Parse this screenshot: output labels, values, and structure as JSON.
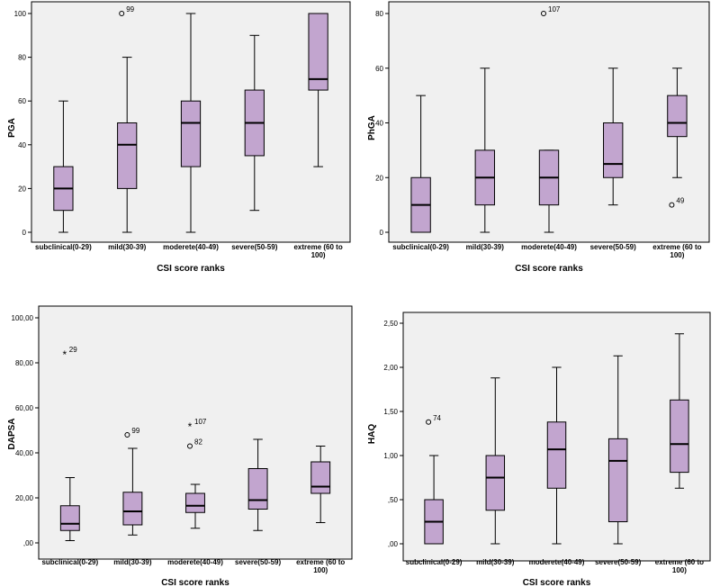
{
  "colors": {
    "box_fill": "#c2a5cf",
    "plot_bg": "#f0f0f0",
    "frame": "#000000"
  },
  "chart_data": [
    {
      "type": "boxplot",
      "ylabel": "PGA",
      "xlabel": "CSI score ranks",
      "ylim": [
        0,
        100
      ],
      "ticks": [
        0,
        20,
        40,
        60,
        80,
        100
      ],
      "tick_labels": [
        "0",
        "20",
        "40",
        "60",
        "80",
        "100"
      ],
      "categories": [
        {
          "name": "subclinical(0-29)",
          "label_lines": [
            "subclinical(0-29)"
          ],
          "min": 0,
          "q1": 10,
          "median": 20,
          "q3": 30,
          "max": 60,
          "outliers": []
        },
        {
          "name": "mild(30-39)",
          "label_lines": [
            "mild(30-39)"
          ],
          "min": 0,
          "q1": 20,
          "median": 40,
          "q3": 50,
          "max": 80,
          "outliers": [
            {
              "value": 100,
              "label": "99",
              "marker": "circle"
            }
          ]
        },
        {
          "name": "moderete(40-49)",
          "label_lines": [
            "moderete(40-49)"
          ],
          "min": 0,
          "q1": 30,
          "median": 50,
          "q3": 60,
          "max": 100,
          "outliers": []
        },
        {
          "name": "severe(50-59)",
          "label_lines": [
            "severe(50-59)"
          ],
          "min": 10,
          "q1": 35,
          "median": 50,
          "q3": 65,
          "max": 90,
          "outliers": []
        },
        {
          "name": "extreme (60 to 100)",
          "label_lines": [
            "extreme (60 to",
            "100)"
          ],
          "min": 30,
          "q1": 65,
          "median": 70,
          "q3": 100,
          "max": 100,
          "outliers": []
        }
      ]
    },
    {
      "type": "boxplot",
      "ylabel": "PhGA",
      "xlabel": "CSI score ranks",
      "ylim": [
        0,
        80
      ],
      "ticks": [
        0,
        20,
        40,
        60,
        80
      ],
      "tick_labels": [
        "0",
        "20",
        "40",
        "60",
        "80"
      ],
      "categories": [
        {
          "name": "subclinical(0-29)",
          "label_lines": [
            "subclinical(0-29)"
          ],
          "min": 0,
          "q1": 0,
          "median": 10,
          "q3": 20,
          "max": 50,
          "outliers": []
        },
        {
          "name": "mild(30-39)",
          "label_lines": [
            "mild(30-39)"
          ],
          "min": 0,
          "q1": 10,
          "median": 20,
          "q3": 30,
          "max": 60,
          "outliers": []
        },
        {
          "name": "moderete(40-49)",
          "label_lines": [
            "moderete(40-49)"
          ],
          "min": 0,
          "q1": 10,
          "median": 20,
          "q3": 30,
          "max": 30,
          "outliers": [
            {
              "value": 80,
              "label": "107",
              "marker": "circle"
            }
          ]
        },
        {
          "name": "severe(50-59)",
          "label_lines": [
            "severe(50-59)"
          ],
          "min": 10,
          "q1": 20,
          "median": 25,
          "q3": 40,
          "max": 60,
          "outliers": []
        },
        {
          "name": "extreme (60 to 100)",
          "label_lines": [
            "extreme (60 to",
            "100)"
          ],
          "min": 20,
          "q1": 35,
          "median": 40,
          "q3": 50,
          "max": 60,
          "outliers": [
            {
              "value": 10,
              "label": "49",
              "marker": "circle"
            }
          ]
        }
      ]
    },
    {
      "type": "boxplot",
      "ylabel": "DAPSA",
      "xlabel": "CSI score ranks",
      "ylim": [
        0,
        100
      ],
      "ticks": [
        0,
        20,
        40,
        60,
        80,
        100
      ],
      "tick_labels": [
        ",00",
        "20,00",
        "40,00",
        "60,00",
        "80,00",
        "100,00"
      ],
      "categories": [
        {
          "name": "subclinical(0-29)",
          "label_lines": [
            "subclinical(0-29)"
          ],
          "min": 1,
          "q1": 5.5,
          "median": 8.5,
          "q3": 16.5,
          "max": 29,
          "outliers": [
            {
              "value": 84,
              "label": "29",
              "marker": "star"
            }
          ]
        },
        {
          "name": "mild(30-39)",
          "label_lines": [
            "mild(30-39)"
          ],
          "min": 3.5,
          "q1": 8,
          "median": 14,
          "q3": 22.5,
          "max": 42,
          "outliers": [
            {
              "value": 48,
              "label": "99",
              "marker": "circle"
            }
          ]
        },
        {
          "name": "moderete(40-49)",
          "label_lines": [
            "moderete(40-49)"
          ],
          "min": 6.5,
          "q1": 13.5,
          "median": 16.5,
          "q3": 22,
          "max": 26,
          "outliers": [
            {
              "value": 52,
              "label": "107",
              "marker": "star"
            },
            {
              "value": 43,
              "label": "82",
              "marker": "circle"
            }
          ]
        },
        {
          "name": "severe(50-59)",
          "label_lines": [
            "severe(50-59)"
          ],
          "min": 5.5,
          "q1": 15,
          "median": 19,
          "q3": 33,
          "max": 46,
          "outliers": []
        },
        {
          "name": "extreme (60 to 100)",
          "label_lines": [
            "extreme (60 to",
            "100)"
          ],
          "min": 9,
          "q1": 22,
          "median": 25,
          "q3": 36,
          "max": 43,
          "outliers": []
        }
      ]
    },
    {
      "type": "boxplot",
      "ylabel": "HAQ",
      "xlabel": "CSI score ranks",
      "ylim": [
        0,
        2.5
      ],
      "ticks": [
        0,
        0.5,
        1,
        1.5,
        2,
        2.5
      ],
      "tick_labels": [
        ",00",
        ",50",
        "1,00",
        "1,50",
        "2,00",
        "2,50"
      ],
      "categories": [
        {
          "name": "subclinical(0-29)",
          "label_lines": [
            "subclinical(0-29)"
          ],
          "min": 0,
          "q1": 0,
          "median": 0.25,
          "q3": 0.5,
          "max": 1.0,
          "outliers": [
            {
              "value": 1.38,
              "label": "74",
              "marker": "circle"
            }
          ]
        },
        {
          "name": "mild(30-39)",
          "label_lines": [
            "mild(30-39)"
          ],
          "min": 0,
          "q1": 0.38,
          "median": 0.75,
          "q3": 1.0,
          "max": 1.88,
          "outliers": []
        },
        {
          "name": "moderete(40-49)",
          "label_lines": [
            "moderete(40-49)"
          ],
          "min": 0,
          "q1": 0.63,
          "median": 1.07,
          "q3": 1.38,
          "max": 2.0,
          "outliers": []
        },
        {
          "name": "severe(50-59)",
          "label_lines": [
            "severe(50-59)"
          ],
          "min": 0,
          "q1": 0.25,
          "median": 0.94,
          "q3": 1.19,
          "max": 2.13,
          "outliers": []
        },
        {
          "name": "extreme (60 to 100)",
          "label_lines": [
            "extreme (60 to",
            "100)"
          ],
          "min": 0.63,
          "q1": 0.81,
          "median": 1.13,
          "q3": 1.63,
          "max": 2.38,
          "outliers": []
        }
      ]
    }
  ]
}
